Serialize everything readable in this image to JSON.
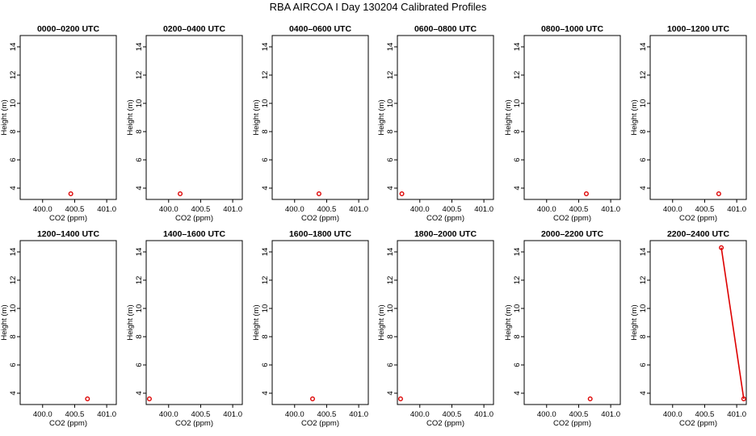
{
  "figure": {
    "title": "RBA AIRCOA I  Day 130204  Calibrated Profiles"
  },
  "colors": {
    "series": "#dd0000",
    "frame": "#000000"
  },
  "chart_data": [
    {
      "type": "line",
      "title": "0000–0200 UTC",
      "xlabel": "CO2 (ppm)",
      "ylabel": "Height (m)",
      "xlim": [
        399.65,
        401.15
      ],
      "ylim": [
        3.2,
        14.8
      ],
      "xticks": [
        "400.0",
        "400.5",
        "401.0"
      ],
      "yticks": [
        "4",
        "6",
        "8",
        "10",
        "12",
        "14"
      ],
      "grid": false,
      "legend": "none",
      "points": [
        {
          "x": 400.44,
          "y": 3.6
        }
      ]
    },
    {
      "type": "line",
      "title": "0200–0400 UTC",
      "xlabel": "CO2 (ppm)",
      "ylabel": "Height (m)",
      "xlim": [
        399.65,
        401.15
      ],
      "ylim": [
        3.2,
        14.8
      ],
      "xticks": [
        "400.0",
        "400.5",
        "401.0"
      ],
      "yticks": [
        "4",
        "6",
        "8",
        "10",
        "12",
        "14"
      ],
      "grid": false,
      "legend": "none",
      "points": [
        {
          "x": 400.18,
          "y": 3.6
        }
      ]
    },
    {
      "type": "line",
      "title": "0400–0600 UTC",
      "xlabel": "CO2 (ppm)",
      "ylabel": "Height (m)",
      "xlim": [
        399.65,
        401.15
      ],
      "ylim": [
        3.2,
        14.8
      ],
      "xticks": [
        "400.0",
        "400.5",
        "401.0"
      ],
      "yticks": [
        "4",
        "6",
        "8",
        "10",
        "12",
        "14"
      ],
      "grid": false,
      "legend": "none",
      "points": [
        {
          "x": 400.38,
          "y": 3.6
        }
      ]
    },
    {
      "type": "line",
      "title": "0600–0800 UTC",
      "xlabel": "CO2 (ppm)",
      "ylabel": "Height (m)",
      "xlim": [
        399.65,
        401.15
      ],
      "ylim": [
        3.2,
        14.8
      ],
      "xticks": [
        "400.0",
        "400.5",
        "401.0"
      ],
      "yticks": [
        "4",
        "6",
        "8",
        "10",
        "12",
        "14"
      ],
      "grid": false,
      "legend": "none",
      "points": [
        {
          "x": 399.72,
          "y": 3.6
        }
      ]
    },
    {
      "type": "line",
      "title": "0800–1000 UTC",
      "xlabel": "CO2 (ppm)",
      "ylabel": "Height (m)",
      "xlim": [
        399.65,
        401.15
      ],
      "ylim": [
        3.2,
        14.8
      ],
      "xticks": [
        "400.0",
        "400.5",
        "401.0"
      ],
      "yticks": [
        "4",
        "6",
        "8",
        "10",
        "12",
        "14"
      ],
      "grid": false,
      "legend": "none",
      "points": [
        {
          "x": 400.62,
          "y": 3.6
        }
      ]
    },
    {
      "type": "line",
      "title": "1000–1200 UTC",
      "xlabel": "CO2 (ppm)",
      "ylabel": "Height (m)",
      "xlim": [
        399.65,
        401.15
      ],
      "ylim": [
        3.2,
        14.8
      ],
      "xticks": [
        "400.0",
        "400.5",
        "401.0"
      ],
      "yticks": [
        "4",
        "6",
        "8",
        "10",
        "12",
        "14"
      ],
      "grid": false,
      "legend": "none",
      "points": [
        {
          "x": 400.72,
          "y": 3.6
        }
      ]
    },
    {
      "type": "line",
      "title": "1200–1400 UTC",
      "xlabel": "CO2 (ppm)",
      "ylabel": "Height (m)",
      "xlim": [
        399.65,
        401.15
      ],
      "ylim": [
        3.2,
        14.8
      ],
      "xticks": [
        "400.0",
        "400.5",
        "401.0"
      ],
      "yticks": [
        "4",
        "6",
        "8",
        "10",
        "12",
        "14"
      ],
      "grid": false,
      "legend": "none",
      "points": [
        {
          "x": 400.7,
          "y": 3.6
        }
      ]
    },
    {
      "type": "line",
      "title": "1400–1600 UTC",
      "xlabel": "CO2 (ppm)",
      "ylabel": "Height (m)",
      "xlim": [
        399.65,
        401.15
      ],
      "ylim": [
        3.2,
        14.8
      ],
      "xticks": [
        "400.0",
        "400.5",
        "401.0"
      ],
      "yticks": [
        "4",
        "6",
        "8",
        "10",
        "12",
        "14"
      ],
      "grid": false,
      "legend": "none",
      "points": [
        {
          "x": 399.7,
          "y": 3.6
        }
      ]
    },
    {
      "type": "line",
      "title": "1600–1800 UTC",
      "xlabel": "CO2 (ppm)",
      "ylabel": "Height (m)",
      "xlim": [
        399.65,
        401.15
      ],
      "ylim": [
        3.2,
        14.8
      ],
      "xticks": [
        "400.0",
        "400.5",
        "401.0"
      ],
      "yticks": [
        "4",
        "6",
        "8",
        "10",
        "12",
        "14"
      ],
      "grid": false,
      "legend": "none",
      "points": [
        {
          "x": 400.28,
          "y": 3.6
        }
      ]
    },
    {
      "type": "line",
      "title": "1800–2000 UTC",
      "xlabel": "CO2 (ppm)",
      "ylabel": "Height (m)",
      "xlim": [
        399.65,
        401.15
      ],
      "ylim": [
        3.2,
        14.8
      ],
      "xticks": [
        "400.0",
        "400.5",
        "401.0"
      ],
      "yticks": [
        "4",
        "6",
        "8",
        "10",
        "12",
        "14"
      ],
      "grid": false,
      "legend": "none",
      "points": [
        {
          "x": 399.7,
          "y": 3.6
        }
      ]
    },
    {
      "type": "line",
      "title": "2000–2200 UTC",
      "xlabel": "CO2 (ppm)",
      "ylabel": "Height (m)",
      "xlim": [
        399.65,
        401.15
      ],
      "ylim": [
        3.2,
        14.8
      ],
      "xticks": [
        "400.0",
        "400.5",
        "401.0"
      ],
      "yticks": [
        "4",
        "6",
        "8",
        "10",
        "12",
        "14"
      ],
      "grid": false,
      "legend": "none",
      "points": [
        {
          "x": 400.68,
          "y": 3.6
        }
      ]
    },
    {
      "type": "line",
      "title": "2200–2400 UTC",
      "xlabel": "CO2 (ppm)",
      "ylabel": "Height (m)",
      "xlim": [
        399.65,
        401.15
      ],
      "ylim": [
        3.2,
        14.8
      ],
      "xticks": [
        "400.0",
        "400.5",
        "401.0"
      ],
      "yticks": [
        "4",
        "6",
        "8",
        "10",
        "12",
        "14"
      ],
      "grid": false,
      "legend": "none",
      "points": [
        {
          "x": 400.76,
          "y": 14.3
        },
        {
          "x": 401.11,
          "y": 3.6
        }
      ]
    }
  ]
}
